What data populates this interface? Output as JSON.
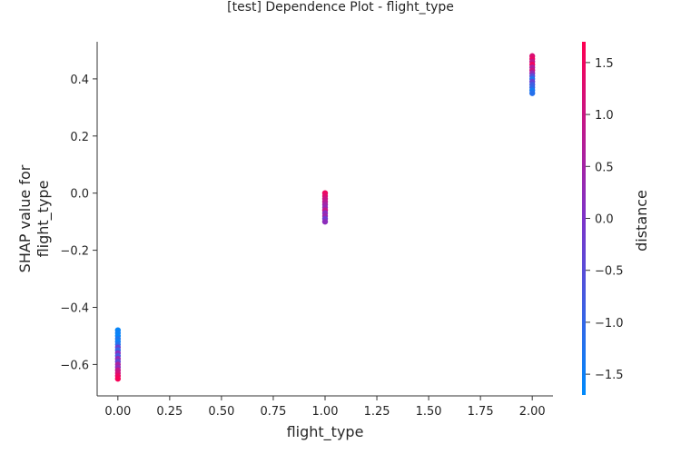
{
  "chart_data": {
    "type": "scatter",
    "title": "[test] Dependence Plot - flight_type",
    "xlabel": "flight_type",
    "ylabel": "SHAP value for\nflight_type",
    "xlim": [
      -0.1,
      2.1
    ],
    "ylim": [
      -0.71,
      0.53
    ],
    "xticks": [
      0.0,
      0.25,
      0.5,
      0.75,
      1.0,
      1.25,
      1.5,
      1.75,
      2.0
    ],
    "xtick_labels": [
      "0.00",
      "0.25",
      "0.50",
      "0.75",
      "1.00",
      "1.25",
      "1.50",
      "1.75",
      "2.00"
    ],
    "yticks": [
      0.4,
      0.2,
      0.0,
      -0.2,
      -0.4,
      -0.6
    ],
    "ytick_labels": [
      "0.4",
      "0.2",
      "0.0",
      "−0.2",
      "−0.4",
      "−0.6"
    ],
    "colorbar": {
      "label": "distance",
      "range": [
        -1.7,
        1.7
      ],
      "ticks": [
        1.5,
        1.0,
        0.5,
        0.0,
        -0.5,
        -1.0,
        -1.5
      ],
      "tick_labels": [
        "1.5",
        "1.0",
        "0.5",
        "0.0",
        "−0.5",
        "−1.0",
        "−1.5"
      ],
      "colors": [
        "#008afb",
        "#7d33c9",
        "#ff0051"
      ]
    },
    "grid": false,
    "series": [
      {
        "points": [
          {
            "x": 0,
            "y": -0.48,
            "c": -1.6
          },
          {
            "x": 0,
            "y": -0.49,
            "c": -1.5
          },
          {
            "x": 0,
            "y": -0.5,
            "c": -1.6
          },
          {
            "x": 0,
            "y": -0.51,
            "c": -1.3
          },
          {
            "x": 0,
            "y": -0.52,
            "c": -1.5
          },
          {
            "x": 0,
            "y": -0.53,
            "c": -1.2
          },
          {
            "x": 0,
            "y": -0.54,
            "c": -0.3
          },
          {
            "x": 0,
            "y": -0.55,
            "c": -1.0
          },
          {
            "x": 0,
            "y": -0.56,
            "c": 0.1
          },
          {
            "x": 0,
            "y": -0.57,
            "c": -0.7
          },
          {
            "x": 0,
            "y": -0.58,
            "c": 0.3
          },
          {
            "x": 0,
            "y": -0.59,
            "c": -0.4
          },
          {
            "x": 0,
            "y": -0.6,
            "c": 0.6
          },
          {
            "x": 0,
            "y": -0.61,
            "c": 0.2
          },
          {
            "x": 0,
            "y": -0.62,
            "c": 0.9
          },
          {
            "x": 0,
            "y": -0.63,
            "c": 1.1
          },
          {
            "x": 0,
            "y": -0.64,
            "c": 1.4
          },
          {
            "x": 0,
            "y": -0.65,
            "c": 1.6
          },
          {
            "x": 1,
            "y": 0.0,
            "c": 1.5
          },
          {
            "x": 1,
            "y": -0.01,
            "c": 1.3
          },
          {
            "x": 1,
            "y": -0.02,
            "c": 1.0
          },
          {
            "x": 1,
            "y": -0.03,
            "c": 0.8
          },
          {
            "x": 1,
            "y": -0.04,
            "c": 0.5
          },
          {
            "x": 1,
            "y": -0.05,
            "c": 0.3
          },
          {
            "x": 1,
            "y": -0.06,
            "c": 0.9
          },
          {
            "x": 1,
            "y": -0.07,
            "c": 0.1
          },
          {
            "x": 1,
            "y": -0.08,
            "c": 0.4
          },
          {
            "x": 1,
            "y": -0.09,
            "c": -0.2
          },
          {
            "x": 1,
            "y": -0.1,
            "c": 0.2
          },
          {
            "x": 2,
            "y": 0.48,
            "c": 1.2
          },
          {
            "x": 2,
            "y": 0.47,
            "c": 1.4
          },
          {
            "x": 2,
            "y": 0.46,
            "c": 0.9
          },
          {
            "x": 2,
            "y": 0.45,
            "c": 1.5
          },
          {
            "x": 2,
            "y": 0.44,
            "c": 0.6
          },
          {
            "x": 2,
            "y": 0.43,
            "c": 1.0
          },
          {
            "x": 2,
            "y": 0.42,
            "c": 0.3
          },
          {
            "x": 2,
            "y": 0.41,
            "c": -0.5
          },
          {
            "x": 2,
            "y": 0.4,
            "c": -1.2
          },
          {
            "x": 2,
            "y": 0.39,
            "c": -0.3
          },
          {
            "x": 2,
            "y": 0.38,
            "c": -0.8
          },
          {
            "x": 2,
            "y": 0.37,
            "c": -1.0
          },
          {
            "x": 2,
            "y": 0.36,
            "c": -1.4
          },
          {
            "x": 2,
            "y": 0.35,
            "c": -1.2
          }
        ]
      }
    ]
  }
}
